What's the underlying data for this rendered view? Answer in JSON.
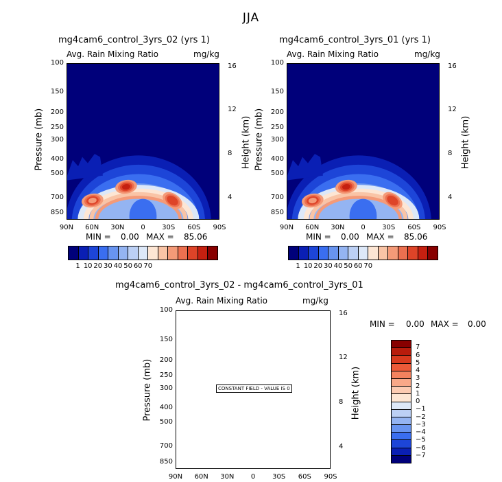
{
  "main_title": "JJA",
  "colors": {
    "levels": [
      "#00007a",
      "#0a1fb4",
      "#1d45d8",
      "#3a6ef0",
      "#6894f0",
      "#94b4f2",
      "#bcd0f5",
      "#dde8f8",
      "#fde6d4",
      "#f9c4a6",
      "#f49a78",
      "#ec7050",
      "#de4428",
      "#c52010",
      "#880000"
    ],
    "diff_levels": [
      "#880000",
      "#b81c0c",
      "#d83a1e",
      "#ec5a38",
      "#f4825e",
      "#f9a888",
      "#fccbb2",
      "#fde6d4",
      "#dde8f8",
      "#bcd0f5",
      "#94b4f2",
      "#6894f0",
      "#3a6ef0",
      "#1d45d8",
      "#0a1fb4",
      "#00007a"
    ]
  },
  "chart_data": [
    {
      "type": "heatmap",
      "title": "mg4cam6_control_3yrs_02 (yrs 1)",
      "variable": "Avg. Rain Mixing Ratio",
      "units": "mg/kg",
      "xlabel": "",
      "ylabel": "Pressure (mb)",
      "ylabel_right": "Height (km)",
      "x_ticks": [
        "90N",
        "60N",
        "30N",
        "0",
        "30S",
        "60S",
        "90S"
      ],
      "y_ticks": [
        "100",
        "150",
        "200",
        "250",
        "300",
        "400",
        "500",
        "700",
        "850"
      ],
      "y_ticks_right": [
        "16",
        "12",
        "8",
        "4"
      ],
      "min_label": "MIN =",
      "min_value": "0.00",
      "max_label": "MAX =",
      "max_value": "85.06",
      "colorbar_labels": [
        "1",
        "10",
        "20",
        "30",
        "40",
        "50",
        "60",
        "70"
      ],
      "features": [
        {
          "lat": 20,
          "pressure": 620,
          "value": 78
        },
        {
          "lat": 60,
          "pressure": 760,
          "value": 62
        },
        {
          "lat": -35,
          "pressure": 760,
          "value": 72
        }
      ]
    },
    {
      "type": "heatmap",
      "title": "mg4cam6_control_3yrs_01 (yrs 1)",
      "variable": "Avg. Rain Mixing Ratio",
      "units": "mg/kg",
      "xlabel": "",
      "ylabel": "Pressure (mb)",
      "ylabel_right": "Height (km)",
      "x_ticks": [
        "90N",
        "60N",
        "30N",
        "0",
        "30S",
        "60S",
        "90S"
      ],
      "y_ticks": [
        "100",
        "150",
        "200",
        "250",
        "300",
        "400",
        "500",
        "700",
        "850"
      ],
      "y_ticks_right": [
        "16",
        "12",
        "8",
        "4"
      ],
      "min_label": "MIN =",
      "min_value": "0.00",
      "max_label": "MAX =",
      "max_value": "85.06",
      "colorbar_labels": [
        "1",
        "10",
        "20",
        "30",
        "40",
        "50",
        "60",
        "70"
      ],
      "features": [
        {
          "lat": 20,
          "pressure": 620,
          "value": 78
        },
        {
          "lat": 60,
          "pressure": 760,
          "value": 62
        },
        {
          "lat": -35,
          "pressure": 760,
          "value": 72
        }
      ]
    },
    {
      "type": "heatmap",
      "title": "mg4cam6_control_3yrs_02 - mg4cam6_control_3yrs_01",
      "variable": "Avg. Rain Mixing Ratio",
      "units": "mg/kg",
      "xlabel": "",
      "ylabel": "Pressure (mb)",
      "ylabel_right": "Height (km)",
      "x_ticks": [
        "90N",
        "60N",
        "30N",
        "0",
        "30S",
        "60S",
        "90S"
      ],
      "y_ticks": [
        "100",
        "150",
        "200",
        "250",
        "300",
        "400",
        "500",
        "700",
        "850"
      ],
      "y_ticks_right": [
        "16",
        "12",
        "8",
        "4"
      ],
      "min_label": "MIN =",
      "min_value": "0.00",
      "max_label": "MAX =",
      "max_value": "0.00",
      "note": "CONSTANT FIELD - VALUE IS 0",
      "colorbar_labels": [
        "7",
        "6",
        "5",
        "4",
        "3",
        "2",
        "1",
        "0",
        "−1",
        "−2",
        "−3",
        "−4",
        "−5",
        "−6",
        "−7"
      ]
    }
  ]
}
